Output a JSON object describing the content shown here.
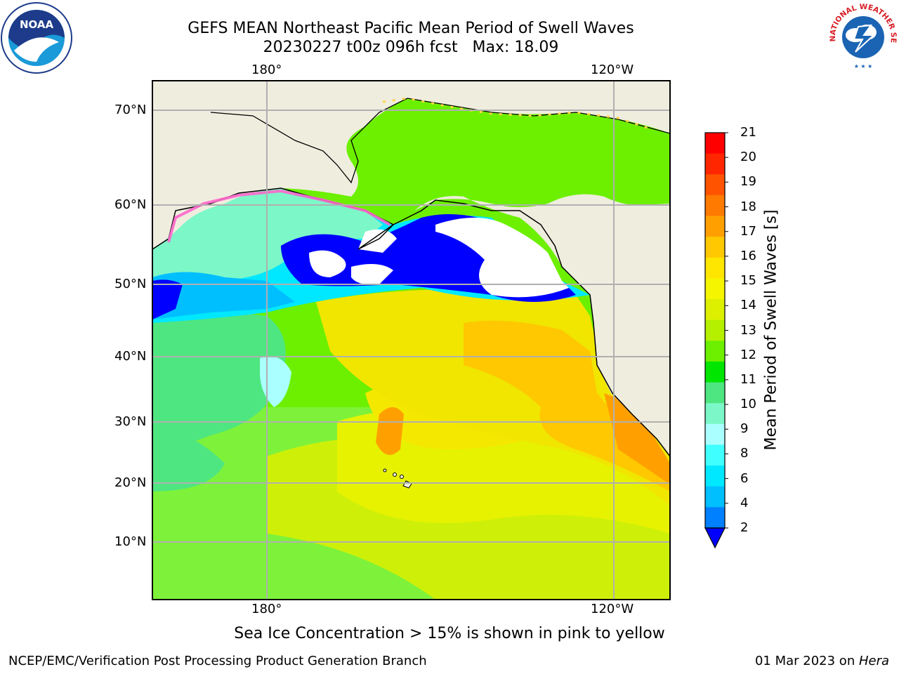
{
  "header": {
    "title_line1": "GEFS MEAN Northeast Pacific Mean Period of Swell Waves",
    "title_line2": "20230227 t00z 096h fcst   Max: 18.09"
  },
  "map": {
    "lon_labels_top": [
      "180°",
      "120°W"
    ],
    "lon_labels_bottom": [
      "180°",
      "120°W"
    ],
    "lat_labels": [
      "70°N",
      "60°N",
      "50°N",
      "40°N",
      "30°N",
      "20°N",
      "10°N"
    ],
    "land_color": "#efedde",
    "grid_color": "#b0b0b0"
  },
  "colorbar": {
    "title": "Mean Period of Swell Waves [s]",
    "ticks": [
      "21",
      "20",
      "19",
      "18",
      "17",
      "16",
      "15",
      "14",
      "13",
      "12",
      "11",
      "10",
      "9",
      "8",
      "6",
      "4",
      "2"
    ],
    "colors": [
      "#ff0000",
      "#ff2600",
      "#ff5300",
      "#ff7a00",
      "#ffa000",
      "#ffc800",
      "#ffe600",
      "#f5f500",
      "#dcf000",
      "#b4f000",
      "#6cf000",
      "#00e600",
      "#4ee680",
      "#7cf7c8",
      "#aaffff",
      "#40ffff",
      "#00e8ff",
      "#00bfff",
      "#0080ff",
      "#0000ff"
    ]
  },
  "note": "Sea Ice Concentration > 15% is shown in pink to yellow",
  "footer": {
    "left": "NCEP/EMC/Verification Post Processing Product Generation Branch",
    "right_date": "01 Mar 2023 on ",
    "right_host": "Hera"
  },
  "logos": {
    "left": "NOAA",
    "right": "NATIONAL WEATHER SERVICE"
  }
}
